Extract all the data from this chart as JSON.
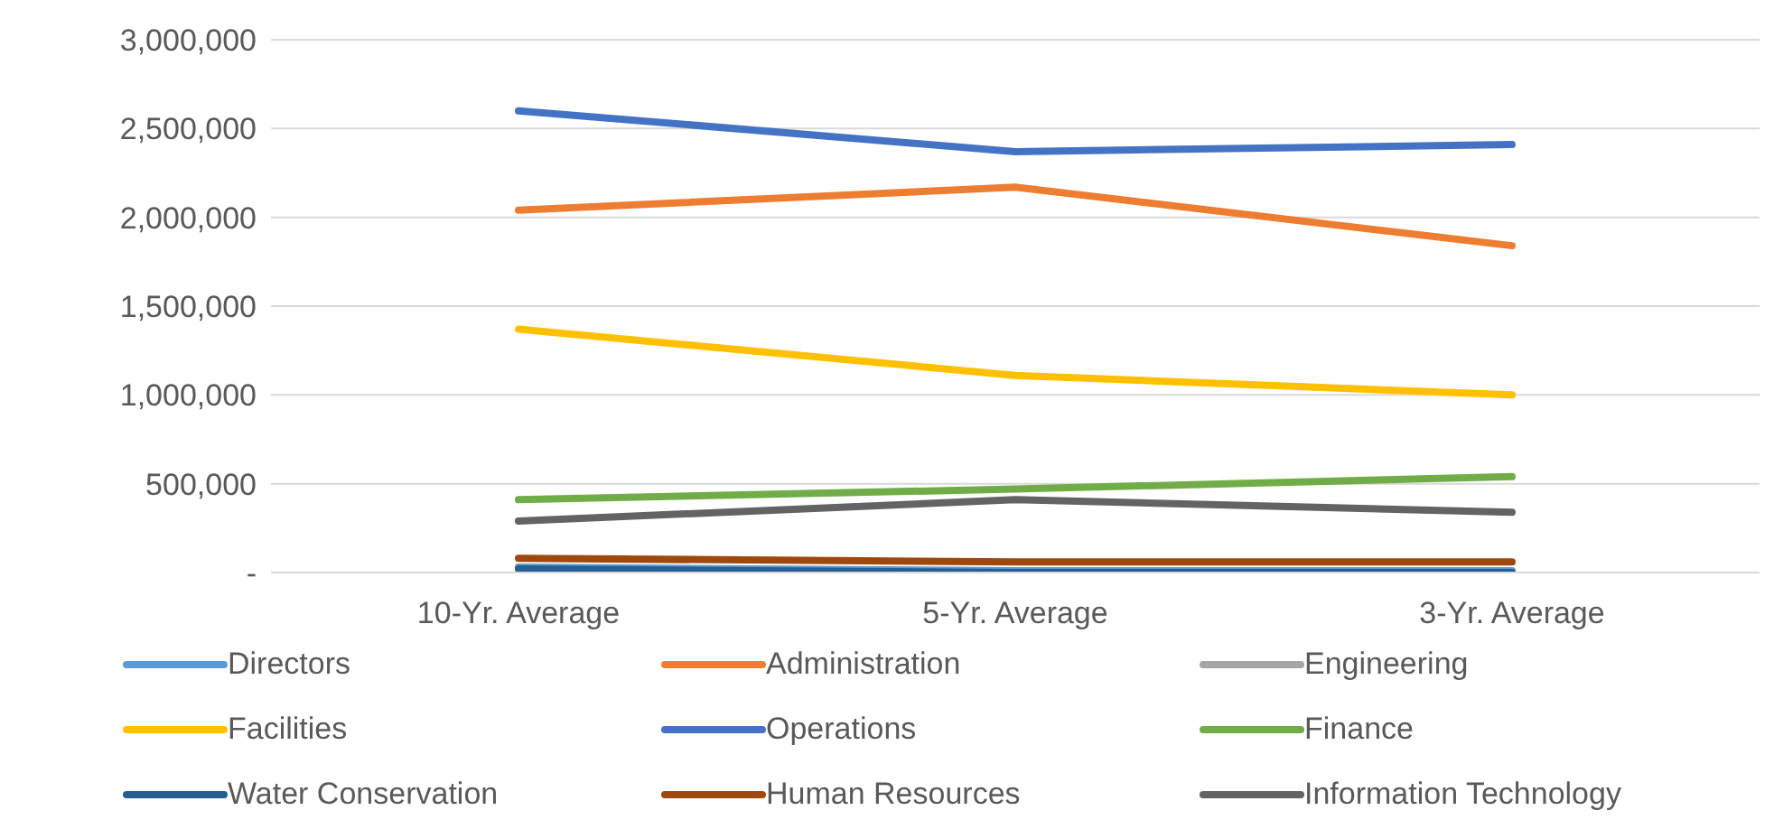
{
  "chart_data": {
    "type": "line",
    "categories": [
      "10-Yr. Average",
      "5-Yr. Average",
      "3-Yr. Average"
    ],
    "series": [
      {
        "name": "Directors",
        "color": "#5b9bd5",
        "values": [
          30000,
          10000,
          10000
        ]
      },
      {
        "name": "Administration",
        "color": "#ed7d31",
        "values": [
          2040000,
          2170000,
          1840000
        ]
      },
      {
        "name": "Engineering",
        "color": "#a5a5a5",
        "values": [
          null,
          null,
          null
        ]
      },
      {
        "name": "Facilities",
        "color": "#ffc000",
        "values": [
          1370000,
          1110000,
          1000000
        ]
      },
      {
        "name": "Operations",
        "color": "#4472c4",
        "values": [
          2600000,
          2370000,
          2410000
        ]
      },
      {
        "name": "Finance",
        "color": "#70ad47",
        "values": [
          410000,
          470000,
          540000
        ]
      },
      {
        "name": "Water Conservation",
        "color": "#255e91",
        "values": [
          20000,
          0,
          0
        ]
      },
      {
        "name": "Human Resources",
        "color": "#9e480e",
        "values": [
          80000,
          60000,
          60000
        ]
      },
      {
        "name": "Information Technology",
        "color": "#636363",
        "values": [
          290000,
          410000,
          340000
        ]
      }
    ],
    "ylim": [
      0,
      3000000
    ],
    "yticks": [
      {
        "value": 0,
        "label": "-"
      },
      {
        "value": 500000,
        "label": "500,000"
      },
      {
        "value": 1000000,
        "label": "1,000,000"
      },
      {
        "value": 1500000,
        "label": "1,500,000"
      },
      {
        "value": 2000000,
        "label": "2,000,000"
      },
      {
        "value": 2500000,
        "label": "2,500,000"
      },
      {
        "value": 3000000,
        "label": "3,000,000"
      }
    ],
    "grid": "y",
    "legend": "bottom",
    "line_style": "solid",
    "marker": "none"
  }
}
